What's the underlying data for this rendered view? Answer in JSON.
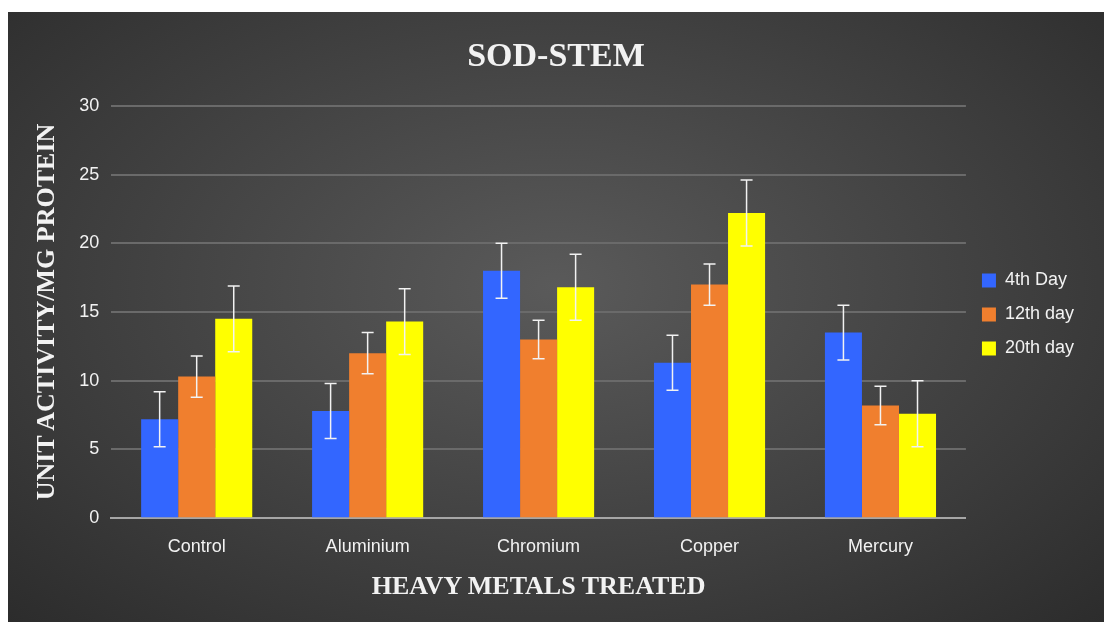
{
  "chart_data": {
    "type": "bar",
    "title": "SOD-STEM",
    "xlabel": "HEAVY METALS TREATED",
    "ylabel": "UNIT ACTIVITY/MG PROTEIN",
    "categories": [
      "Control",
      "Aluminium",
      "Chromium",
      "Copper",
      "Mercury"
    ],
    "series": [
      {
        "name": "4th Day",
        "color": "#3366ff",
        "values": [
          7.2,
          7.8,
          18,
          11.3,
          13.5
        ],
        "errors": [
          2,
          2,
          2,
          2,
          2
        ]
      },
      {
        "name": "12th day",
        "color": "#f07f2e",
        "values": [
          10.3,
          12,
          13,
          17,
          8.2
        ],
        "errors": [
          1.5,
          1.5,
          1.4,
          1.5,
          1.4
        ]
      },
      {
        "name": "20th day",
        "color": "#ffff00",
        "values": [
          14.5,
          14.3,
          16.8,
          22.2,
          7.6
        ],
        "errors": [
          2.4,
          2.4,
          2.4,
          2.4,
          2.4
        ]
      }
    ],
    "ylim": [
      0,
      30
    ],
    "yticks": [
      0,
      5,
      10,
      15,
      20,
      25,
      30
    ],
    "grid": "y",
    "legend": "right"
  }
}
